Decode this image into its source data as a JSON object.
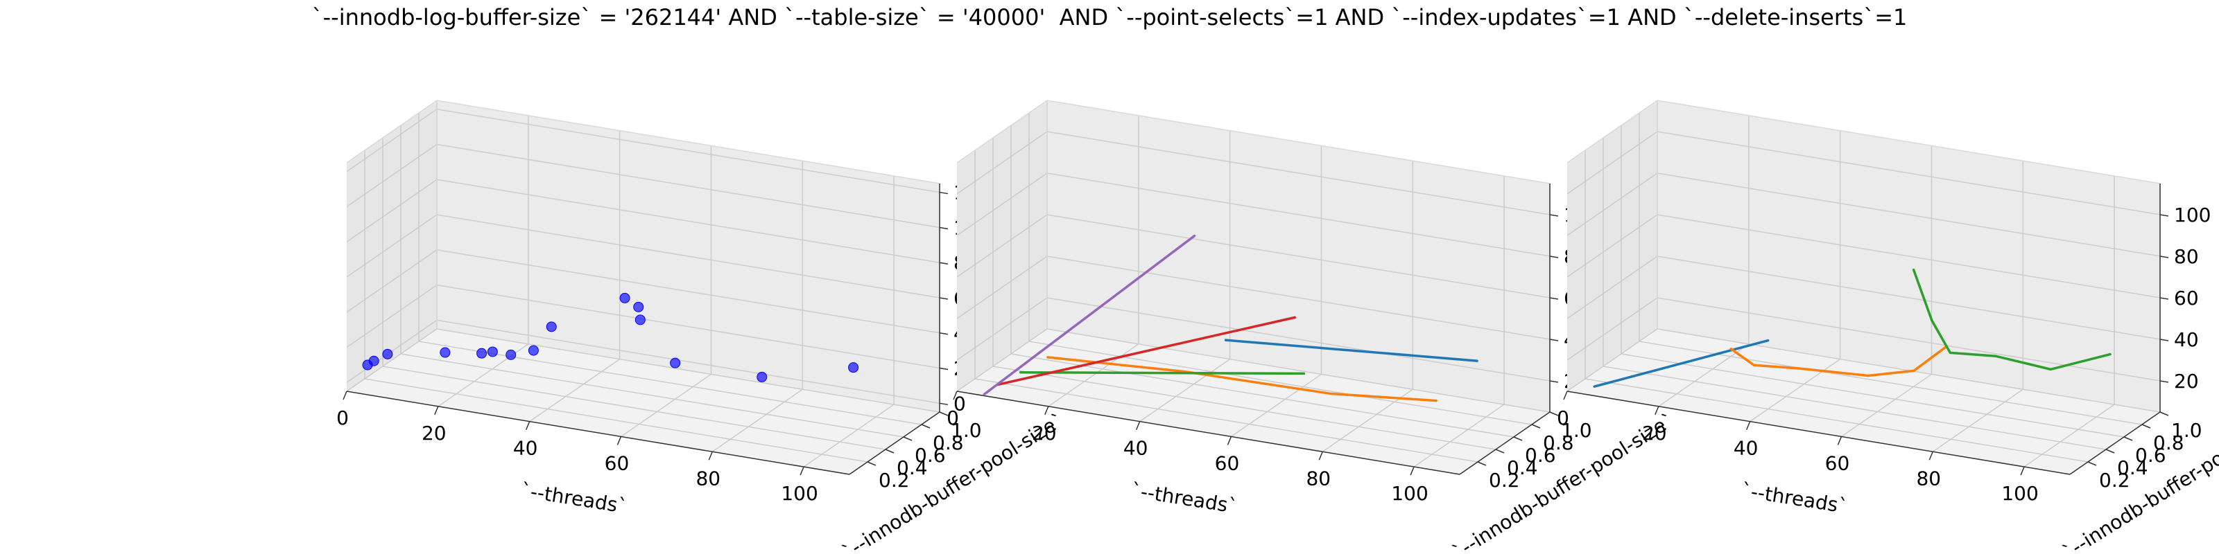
{
  "title": "`--innodb-log-buffer-size` = '262144' AND `--table-size` = '40000'  AND `--point-selects`=1 AND `--index-updates`=1 AND `--delete-inserts`=1",
  "chart_data": [
    {
      "type": "scatter3d",
      "xlabel": "`--threads`",
      "ylabel": "`--innodb-buffer-pool-size`",
      "xticks": [
        "0",
        "20",
        "40",
        "60",
        "80",
        "100"
      ],
      "yticks": [
        "0.2",
        "0.4",
        "0.6",
        "0.8",
        "1.0"
      ],
      "zticks": [
        "0",
        "20",
        "40",
        "60",
        "80",
        "100",
        "120"
      ],
      "xlim": [
        0,
        110
      ],
      "ylim": [
        0,
        1
      ],
      "zlim": [
        -5,
        125
      ],
      "grid": true,
      "color": "#0000ff",
      "points": [
        {
          "x": 1,
          "y": 0.18,
          "z": 4
        },
        {
          "x": 2,
          "y": 0.2,
          "z": 6
        },
        {
          "x": 4,
          "y": 0.25,
          "z": 9
        },
        {
          "x": 16,
          "y": 0.28,
          "z": 14
        },
        {
          "x": 24,
          "y": 0.28,
          "z": 17
        },
        {
          "x": 26,
          "y": 0.3,
          "z": 18
        },
        {
          "x": 30,
          "y": 0.3,
          "z": 18
        },
        {
          "x": 32,
          "y": 0.45,
          "z": 16
        },
        {
          "x": 30,
          "y": 0.75,
          "z": 18
        },
        {
          "x": 62,
          "y": 0.5,
          "z": 20
        },
        {
          "x": 50,
          "y": 0.55,
          "z": 50
        },
        {
          "x": 52,
          "y": 0.6,
          "z": 44
        },
        {
          "x": 52,
          "y": 0.62,
          "z": 36
        },
        {
          "x": 80,
          "y": 0.55,
          "z": 18
        },
        {
          "x": 100,
          "y": 0.55,
          "z": 32
        }
      ]
    },
    {
      "type": "line3d",
      "xlabel": "`--threads`",
      "ylabel": "`--innodb-buffer-pool-size`",
      "xticks": [
        "0",
        "20",
        "40",
        "60",
        "80",
        "100"
      ],
      "yticks": [
        "0.2",
        "0.4",
        "0.6",
        "0.8",
        "1.0"
      ],
      "zticks": [
        "20",
        "40",
        "60",
        "80",
        "100"
      ],
      "xlim": [
        0,
        110
      ],
      "ylim": [
        0,
        1
      ],
      "zlim": [
        5,
        115
      ],
      "grid": true,
      "series": [
        {
          "color": "#1f77b4",
          "points": [
            {
              "x": 45,
              "y": 0.7,
              "z": 25
            },
            {
              "x": 100,
              "y": 0.7,
              "z": 35
            }
          ]
        },
        {
          "color": "#ff7f0e",
          "points": [
            {
              "x": 10,
              "y": 0.5,
              "z": 10
            },
            {
              "x": 40,
              "y": 0.5,
              "z": 14
            },
            {
              "x": 72,
              "y": 0.5,
              "z": 15
            },
            {
              "x": 95,
              "y": 0.5,
              "z": 20
            }
          ]
        },
        {
          "color": "#2ca02c",
          "points": [
            {
              "x": 8,
              "y": 0.3,
              "z": 8
            },
            {
              "x": 70,
              "y": 0.3,
              "z": 30
            }
          ]
        },
        {
          "color": "#d62728",
          "points": [
            {
              "x": 5,
              "y": 0.2,
              "z": 4
            },
            {
              "x": 70,
              "y": 0.2,
              "z": 60
            }
          ]
        },
        {
          "color": "#9467bd",
          "points": [
            {
              "x": 4,
              "y": 0.1,
              "z": 2
            },
            {
              "x": 50,
              "y": 0.1,
              "z": 95
            }
          ]
        }
      ]
    },
    {
      "type": "line3d",
      "xlabel": "`--threads`",
      "ylabel": "`--innodb-buffer-pool-size`",
      "xticks": [
        "0",
        "20",
        "40",
        "60",
        "80",
        "100"
      ],
      "yticks": [
        "0.2",
        "0.4",
        "0.6",
        "0.8",
        "1.0"
      ],
      "zticks": [
        "20",
        "40",
        "60",
        "80",
        "100"
      ],
      "xlim": [
        0,
        110
      ],
      "ylim": [
        0,
        1
      ],
      "zlim": [
        5,
        115
      ],
      "grid": true,
      "series": [
        {
          "color": "#1f77b4",
          "points": [
            {
              "x": 2,
              "y": 0.2,
              "z": 2
            },
            {
              "x": 40,
              "y": 0.2,
              "z": 38
            }
          ]
        },
        {
          "color": "#ff7f0e",
          "points": [
            {
              "x": 25,
              "y": 0.55,
              "z": 18
            },
            {
              "x": 30,
              "y": 0.55,
              "z": 12
            },
            {
              "x": 40,
              "y": 0.55,
              "z": 14
            },
            {
              "x": 55,
              "y": 0.55,
              "z": 16
            },
            {
              "x": 65,
              "y": 0.55,
              "z": 22
            },
            {
              "x": 72,
              "y": 0.55,
              "z": 36
            }
          ]
        },
        {
          "color": "#2ca02c",
          "points": [
            {
              "x": 62,
              "y": 0.7,
              "z": 65
            },
            {
              "x": 66,
              "y": 0.7,
              "z": 42
            },
            {
              "x": 70,
              "y": 0.7,
              "z": 28
            },
            {
              "x": 80,
              "y": 0.7,
              "z": 30
            },
            {
              "x": 92,
              "y": 0.7,
              "z": 28
            },
            {
              "x": 105,
              "y": 0.7,
              "z": 40
            }
          ]
        }
      ]
    }
  ]
}
